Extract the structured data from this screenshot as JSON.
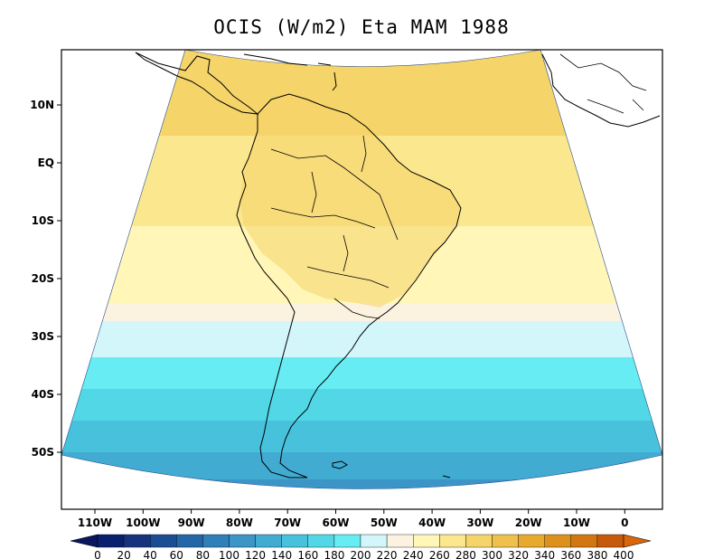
{
  "title": "OCIS (W/m2) Eta MAM 1988",
  "colors": {
    "land_outline": "#000000",
    "frame": "#000000"
  },
  "lat_ticks": [
    "10N",
    "EQ",
    "10S",
    "20S",
    "30S",
    "40S",
    "50S"
  ],
  "lon_ticks": [
    "110W",
    "100W",
    "90W",
    "80W",
    "70W",
    "60W",
    "50W",
    "40W",
    "30W",
    "20W",
    "10W",
    "0"
  ],
  "colorbar": {
    "labels": [
      "0",
      "20",
      "40",
      "60",
      "80",
      "100",
      "120",
      "140",
      "160",
      "180",
      "200",
      "220",
      "240",
      "260",
      "280",
      "300",
      "320",
      "340",
      "360",
      "380",
      "400"
    ],
    "colors": [
      "#0a1f6e",
      "#16347e",
      "#1b4d94",
      "#2467a8",
      "#2f7fb8",
      "#3b95c6",
      "#42abd2",
      "#48c1dc",
      "#52d7e6",
      "#66ecf2",
      "#d3f6fb",
      "#fcf2e0",
      "#fff6b8",
      "#fbe78e",
      "#f5d46a",
      "#efc04b",
      "#e8aa2e",
      "#dd911c",
      "#d27612",
      "#c65a0a"
    ],
    "under_color": "#0a1660",
    "over_color": "#d8660c"
  },
  "chart_data": {
    "type": "heatmap",
    "title": "OCIS (W/m2) Eta MAM 1988",
    "variable": "OCIS",
    "units": "W/m2",
    "model": "Eta",
    "season": "MAM",
    "year": "1988",
    "lat_range": [
      "60S",
      "15N"
    ],
    "lon_range": [
      "115W",
      "5E"
    ],
    "color_levels": [
      0,
      20,
      40,
      60,
      80,
      100,
      120,
      140,
      160,
      180,
      200,
      220,
      240,
      260,
      280,
      300,
      320,
      340,
      360,
      380,
      400
    ],
    "zonal_pattern": [
      {
        "lat": "10N",
        "value_approx": 290
      },
      {
        "lat": "EQ",
        "value_approx": 280
      },
      {
        "lat": "10S",
        "value_approx": 270
      },
      {
        "lat": "20S",
        "value_approx": 250
      },
      {
        "lat": "30S",
        "value_approx": 210
      },
      {
        "lat": "40S",
        "value_approx": 170
      },
      {
        "lat": "50S",
        "value_approx": 130
      },
      {
        "lat": "58S",
        "value_approx": 110
      }
    ]
  }
}
